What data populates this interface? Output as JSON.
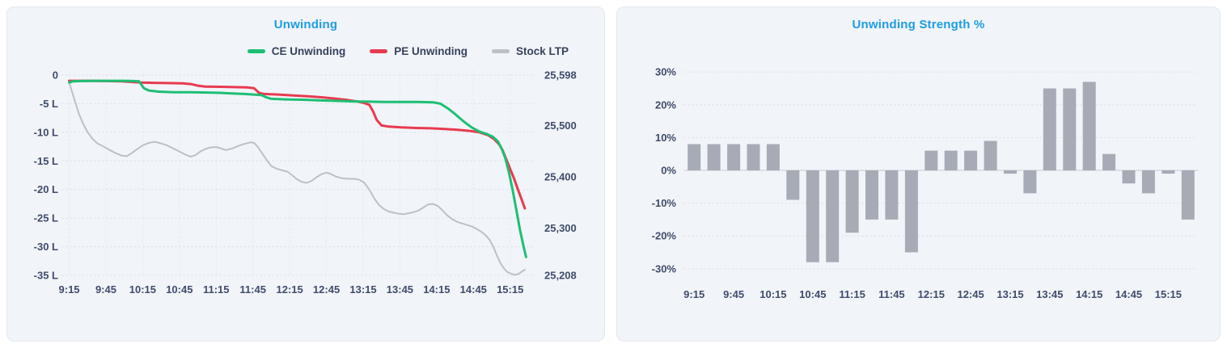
{
  "theme": {
    "title_color": "#1e9de3",
    "axis_text_color": "#3f4c6b",
    "legend_text_color": "#36425e",
    "panel_bg": "#f1f4f8",
    "panel_border": "#e3e8f0",
    "grid_color": "#d7dce4"
  },
  "chart_data": [
    {
      "type": "line",
      "title": "Unwinding",
      "legend": [
        {
          "label": "CE Unwinding",
          "color": "#1dbf74"
        },
        {
          "label": "PE Unwinding",
          "color": "#e83a50"
        },
        {
          "label": "Stock LTP",
          "color": "#bcc1c7"
        }
      ],
      "x_domain_minutes": [
        552,
        935
      ],
      "x_ticks": [
        {
          "t": 555,
          "label": "9:15"
        },
        {
          "t": 585,
          "label": "9:45"
        },
        {
          "t": 615,
          "label": "10:15"
        },
        {
          "t": 645,
          "label": "10:45"
        },
        {
          "t": 675,
          "label": "11:15"
        },
        {
          "t": 705,
          "label": "11:45"
        },
        {
          "t": 735,
          "label": "12:15"
        },
        {
          "t": 765,
          "label": "12:45"
        },
        {
          "t": 795,
          "label": "13:15"
        },
        {
          "t": 825,
          "label": "13:45"
        },
        {
          "t": 855,
          "label": "14:15"
        },
        {
          "t": 885,
          "label": "14:45"
        },
        {
          "t": 915,
          "label": "15:15"
        }
      ],
      "left_axis": {
        "domain": [
          0,
          -35
        ],
        "unit": "L",
        "ticks": [
          {
            "v": 0,
            "label": "0"
          },
          {
            "v": -5,
            "label": "-5 L"
          },
          {
            "v": -10,
            "label": "-10 L"
          },
          {
            "v": -15,
            "label": "-15 L"
          },
          {
            "v": -20,
            "label": "-20 L"
          },
          {
            "v": -25,
            "label": "-25 L"
          },
          {
            "v": -30,
            "label": "-30 L"
          },
          {
            "v": -35,
            "label": "-35 L"
          }
        ]
      },
      "right_axis": {
        "domain": [
          25598,
          25208
        ],
        "ticks": [
          {
            "v": 25598,
            "label": "25,598"
          },
          {
            "v": 25500,
            "label": "25,500"
          },
          {
            "v": 25400,
            "label": "25,400"
          },
          {
            "v": 25300,
            "label": "25,300"
          },
          {
            "v": 25208,
            "label": "25,208"
          }
        ]
      },
      "series": [
        {
          "name": "CE Unwinding",
          "axis": "left",
          "color": "#1dbf74",
          "width": 3,
          "points": [
            [
              555,
              -1.3
            ],
            [
              558,
              -1.1
            ],
            [
              565,
              -1.05
            ],
            [
              575,
              -1.0
            ],
            [
              590,
              -1.0
            ],
            [
              600,
              -1.0
            ],
            [
              608,
              -1.05
            ],
            [
              612,
              -1.1
            ],
            [
              616,
              -2.3
            ],
            [
              620,
              -2.7
            ],
            [
              628,
              -2.9
            ],
            [
              640,
              -3.0
            ],
            [
              655,
              -3.0
            ],
            [
              668,
              -3.05
            ],
            [
              678,
              -3.1
            ],
            [
              688,
              -3.2
            ],
            [
              698,
              -3.3
            ],
            [
              706,
              -3.4
            ],
            [
              712,
              -3.5
            ],
            [
              716,
              -3.9
            ],
            [
              720,
              -4.15
            ],
            [
              732,
              -4.25
            ],
            [
              745,
              -4.3
            ],
            [
              758,
              -4.4
            ],
            [
              772,
              -4.5
            ],
            [
              786,
              -4.6
            ],
            [
              800,
              -4.65
            ],
            [
              812,
              -4.7
            ],
            [
              825,
              -4.7
            ],
            [
              840,
              -4.7
            ],
            [
              852,
              -4.75
            ],
            [
              858,
              -5.0
            ],
            [
              864,
              -5.8
            ],
            [
              870,
              -6.8
            ],
            [
              877,
              -8.1
            ],
            [
              884,
              -9.2
            ],
            [
              890,
              -9.9
            ],
            [
              896,
              -10.3
            ],
            [
              901,
              -10.8
            ],
            [
              905,
              -11.6
            ],
            [
              908,
              -12.8
            ],
            [
              911,
              -14.5
            ],
            [
              914,
              -17.0
            ],
            [
              917,
              -20.0
            ],
            [
              920,
              -23.5
            ],
            [
              923,
              -27.0
            ],
            [
              926,
              -30.0
            ],
            [
              928,
              -31.8
            ]
          ]
        },
        {
          "name": "PE Unwinding",
          "axis": "left",
          "color": "#e83a50",
          "width": 3,
          "points": [
            [
              555,
              -1.0
            ],
            [
              570,
              -1.0
            ],
            [
              585,
              -1.05
            ],
            [
              598,
              -1.1
            ],
            [
              606,
              -1.2
            ],
            [
              614,
              -1.3
            ],
            [
              624,
              -1.35
            ],
            [
              636,
              -1.4
            ],
            [
              648,
              -1.45
            ],
            [
              655,
              -1.6
            ],
            [
              660,
              -1.85
            ],
            [
              666,
              -2.0
            ],
            [
              678,
              -2.05
            ],
            [
              690,
              -2.1
            ],
            [
              700,
              -2.15
            ],
            [
              706,
              -2.3
            ],
            [
              710,
              -3.1
            ],
            [
              714,
              -3.3
            ],
            [
              726,
              -3.4
            ],
            [
              738,
              -3.55
            ],
            [
              750,
              -3.7
            ],
            [
              762,
              -3.9
            ],
            [
              772,
              -4.1
            ],
            [
              782,
              -4.35
            ],
            [
              790,
              -4.6
            ],
            [
              796,
              -4.9
            ],
            [
              800,
              -5.2
            ],
            [
              803,
              -6.3
            ],
            [
              806,
              -7.8
            ],
            [
              810,
              -8.8
            ],
            [
              816,
              -9.0
            ],
            [
              826,
              -9.15
            ],
            [
              838,
              -9.25
            ],
            [
              850,
              -9.3
            ],
            [
              860,
              -9.4
            ],
            [
              872,
              -9.55
            ],
            [
              882,
              -9.75
            ],
            [
              890,
              -10.0
            ],
            [
              897,
              -10.5
            ],
            [
              902,
              -11.2
            ],
            [
              906,
              -12.1
            ],
            [
              909,
              -13.2
            ],
            [
              912,
              -14.8
            ],
            [
              915,
              -16.4
            ],
            [
              918,
              -18.0
            ],
            [
              921,
              -19.8
            ],
            [
              924,
              -21.5
            ],
            [
              927,
              -23.3
            ]
          ]
        },
        {
          "name": "Stock LTP",
          "axis": "right",
          "color": "#bcc1c7",
          "width": 2,
          "points": [
            [
              555,
              25585
            ],
            [
              557,
              25568
            ],
            [
              560,
              25545
            ],
            [
              563,
              25522
            ],
            [
              566,
              25505
            ],
            [
              570,
              25487
            ],
            [
              574,
              25474
            ],
            [
              578,
              25465
            ],
            [
              583,
              25459
            ],
            [
              588,
              25452
            ],
            [
              593,
              25446
            ],
            [
              598,
              25441
            ],
            [
              602,
              25440
            ],
            [
              606,
              25446
            ],
            [
              610,
              25453
            ],
            [
              615,
              25461
            ],
            [
              620,
              25466
            ],
            [
              625,
              25468
            ],
            [
              630,
              25465
            ],
            [
              635,
              25461
            ],
            [
              640,
              25455
            ],
            [
              645,
              25449
            ],
            [
              650,
              25443
            ],
            [
              654,
              25439
            ],
            [
              658,
              25442
            ],
            [
              662,
              25449
            ],
            [
              666,
              25454
            ],
            [
              670,
              25457
            ],
            [
              675,
              25458
            ],
            [
              679,
              25455
            ],
            [
              683,
              25452
            ],
            [
              688,
              25455
            ],
            [
              693,
              25460
            ],
            [
              698,
              25464
            ],
            [
              703,
              25467
            ],
            [
              706,
              25466
            ],
            [
              709,
              25458
            ],
            [
              713,
              25444
            ],
            [
              717,
              25430
            ],
            [
              720,
              25421
            ],
            [
              724,
              25416
            ],
            [
              728,
              25413
            ],
            [
              733,
              25410
            ],
            [
              737,
              25403
            ],
            [
              741,
              25395
            ],
            [
              745,
              25390
            ],
            [
              749,
              25388
            ],
            [
              753,
              25392
            ],
            [
              757,
              25399
            ],
            [
              761,
              25405
            ],
            [
              765,
              25408
            ],
            [
              769,
              25405
            ],
            [
              773,
              25400
            ],
            [
              778,
              25397
            ],
            [
              783,
              25396
            ],
            [
              788,
              25396
            ],
            [
              792,
              25394
            ],
            [
              796,
              25388
            ],
            [
              800,
              25375
            ],
            [
              804,
              25358
            ],
            [
              808,
              25345
            ],
            [
              812,
              25337
            ],
            [
              816,
              25332
            ],
            [
              820,
              25330
            ],
            [
              824,
              25328
            ],
            [
              828,
              25327
            ],
            [
              832,
              25329
            ],
            [
              836,
              25331
            ],
            [
              840,
              25334
            ],
            [
              844,
              25340
            ],
            [
              848,
              25346
            ],
            [
              852,
              25347
            ],
            [
              856,
              25343
            ],
            [
              860,
              25334
            ],
            [
              864,
              25324
            ],
            [
              868,
              25317
            ],
            [
              872,
              25312
            ],
            [
              876,
              25309
            ],
            [
              880,
              25306
            ],
            [
              884,
              25303
            ],
            [
              888,
              25298
            ],
            [
              892,
              25292
            ],
            [
              895,
              25286
            ],
            [
              898,
              25278
            ],
            [
              901,
              25265
            ],
            [
              904,
              25248
            ],
            [
              907,
              25232
            ],
            [
              910,
              25221
            ],
            [
              913,
              25214
            ],
            [
              916,
              25211
            ],
            [
              919,
              25209
            ],
            [
              922,
              25211
            ],
            [
              925,
              25216
            ],
            [
              927,
              25219
            ]
          ]
        }
      ]
    },
    {
      "type": "bar",
      "title": "Unwinding Strength %",
      "bar_color": "#a6abb6",
      "y_domain": [
        -33,
        33
      ],
      "y_ticks": [
        {
          "v": 30,
          "label": "30%"
        },
        {
          "v": 20,
          "label": "20%"
        },
        {
          "v": 10,
          "label": "10%"
        },
        {
          "v": 0,
          "label": "0%"
        },
        {
          "v": -10,
          "label": "-10%"
        },
        {
          "v": -20,
          "label": "-20%"
        },
        {
          "v": -30,
          "label": "-30%"
        }
      ],
      "categories": [
        "9:15",
        "9:30",
        "9:45",
        "10:00",
        "10:15",
        "10:30",
        "10:45",
        "11:00",
        "11:15",
        "11:30",
        "11:45",
        "12:00",
        "12:15",
        "12:30",
        "12:45",
        "13:00",
        "13:15",
        "13:30",
        "13:45",
        "14:00",
        "14:15",
        "14:30",
        "14:45",
        "15:00",
        "15:15",
        "15:30"
      ],
      "values": [
        8,
        8,
        8,
        8,
        8,
        -9,
        -28,
        -28,
        -19,
        -15,
        -15,
        -25,
        6,
        6,
        6,
        9,
        -1,
        -7,
        25,
        25,
        27,
        5,
        -4,
        -7,
        -1,
        -15
      ],
      "x_tick_labels": [
        "9:15",
        "9:45",
        "10:15",
        "10:45",
        "11:15",
        "11:45",
        "12:15",
        "12:45",
        "13:15",
        "13:45",
        "14:15",
        "14:45",
        "15:15"
      ]
    }
  ]
}
